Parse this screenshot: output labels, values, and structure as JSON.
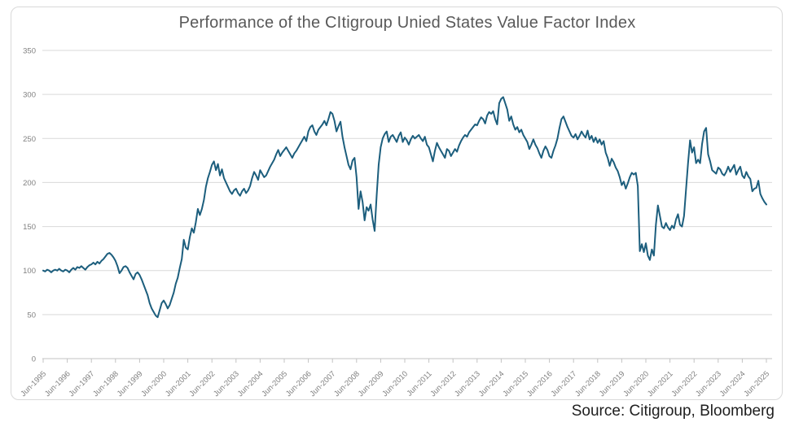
{
  "source_label": "Source: Citigroup, Bloomberg",
  "colors": {
    "line": "#1C5E7D",
    "grid": "#D9D9D9",
    "axis_line": "#C3C3C3",
    "tick_mark": "#C3C3C3",
    "axis_text": "#808080",
    "title_text": "#595959",
    "source_text": "#1F1F1F",
    "frame_border": "#D9D9D9"
  },
  "chart_data": {
    "type": "line",
    "title": "Performance of the CItigroup Unied States Value Factor Index",
    "series_name": "Citigroup United States Value Factor Index",
    "x_start": "Jun-1995",
    "x_end": "Jun-2025",
    "x_frequency": "monthly",
    "x_tick_labels": [
      "Jun-1995",
      "Jun-1996",
      "Jun-1997",
      "Jun-1998",
      "Jun-1999",
      "Jun-2000",
      "Jun-2001",
      "Jun-2002",
      "Jun-2003",
      "Jun-2004",
      "Jun-2005",
      "Jun-2006",
      "Jun-2007",
      "Jun-2008",
      "Jun-2009",
      "Jun-2010",
      "Jun-2011",
      "Jun-2012",
      "Jun-2013",
      "Jun-2014",
      "Jun-2015",
      "Jun-2016",
      "Jun-2017",
      "Jun-2018",
      "Jun-2019",
      "Jun-2020",
      "Jun-2021",
      "Jun-2022",
      "Jun-2023",
      "Jun-2024",
      "Jun-2025"
    ],
    "ylim": [
      0,
      350
    ],
    "y_tick_step": 50,
    "y_tick_labels": [
      "0",
      "50",
      "100",
      "150",
      "200",
      "250",
      "300",
      "350"
    ],
    "grid": "horizontal",
    "legend": "none",
    "values": [
      100,
      99,
      101,
      100,
      98,
      100,
      101,
      100,
      102,
      100,
      99,
      101,
      100,
      98,
      101,
      103,
      101,
      104,
      103,
      105,
      103,
      101,
      104,
      106,
      107,
      109,
      107,
      110,
      108,
      111,
      113,
      116,
      119,
      120,
      118,
      115,
      111,
      105,
      97,
      100,
      104,
      105,
      103,
      98,
      94,
      90,
      96,
      98,
      95,
      90,
      84,
      78,
      72,
      63,
      57,
      53,
      49,
      47,
      55,
      63,
      66,
      62,
      57,
      61,
      68,
      75,
      85,
      92,
      103,
      113,
      135,
      126,
      124,
      138,
      148,
      143,
      155,
      170,
      163,
      170,
      180,
      195,
      205,
      212,
      220,
      224,
      214,
      221,
      208,
      215,
      205,
      200,
      195,
      190,
      187,
      191,
      193,
      188,
      185,
      190,
      193,
      188,
      191,
      196,
      205,
      212,
      208,
      203,
      214,
      210,
      206,
      208,
      213,
      218,
      222,
      226,
      232,
      237,
      230,
      234,
      237,
      240,
      236,
      232,
      228,
      233,
      236,
      240,
      244,
      248,
      252,
      247,
      258,
      263,
      265,
      258,
      254,
      260,
      263,
      266,
      270,
      265,
      272,
      280,
      278,
      270,
      258,
      264,
      269,
      252,
      240,
      230,
      220,
      215,
      225,
      228,
      206,
      170,
      190,
      178,
      157,
      172,
      168,
      175,
      158,
      145,
      185,
      220,
      240,
      250,
      255,
      258,
      246,
      252,
      254,
      250,
      246,
      253,
      257,
      246,
      251,
      248,
      243,
      249,
      253,
      250,
      252,
      254,
      250,
      247,
      252,
      243,
      240,
      232,
      224,
      236,
      245,
      240,
      236,
      232,
      228,
      238,
      236,
      230,
      234,
      238,
      235,
      242,
      247,
      251,
      254,
      252,
      257,
      260,
      263,
      266,
      265,
      270,
      274,
      272,
      267,
      276,
      280,
      278,
      281,
      272,
      266,
      290,
      295,
      297,
      290,
      283,
      270,
      275,
      266,
      260,
      263,
      257,
      260,
      254,
      250,
      246,
      238,
      243,
      249,
      243,
      239,
      233,
      228,
      236,
      241,
      237,
      230,
      228,
      236,
      242,
      250,
      262,
      272,
      275,
      269,
      263,
      258,
      253,
      251,
      255,
      249,
      253,
      258,
      254,
      251,
      259,
      249,
      253,
      246,
      251,
      245,
      249,
      243,
      247,
      234,
      228,
      219,
      227,
      223,
      217,
      213,
      206,
      197,
      201,
      193,
      199,
      206,
      211,
      209,
      211,
      196,
      122,
      130,
      121,
      131,
      117,
      112,
      124,
      117,
      152,
      174,
      162,
      150,
      148,
      154,
      149,
      146,
      151,
      148,
      158,
      164,
      152,
      150,
      162,
      192,
      222,
      248,
      234,
      240,
      222,
      226,
      222,
      244,
      258,
      262,
      232,
      224,
      214,
      212,
      210,
      217,
      215,
      210,
      208,
      212,
      218,
      212,
      216,
      220,
      209,
      214,
      218,
      208,
      205,
      212,
      207,
      204,
      190,
      193,
      194,
      202,
      187,
      182,
      178,
      175
    ]
  }
}
